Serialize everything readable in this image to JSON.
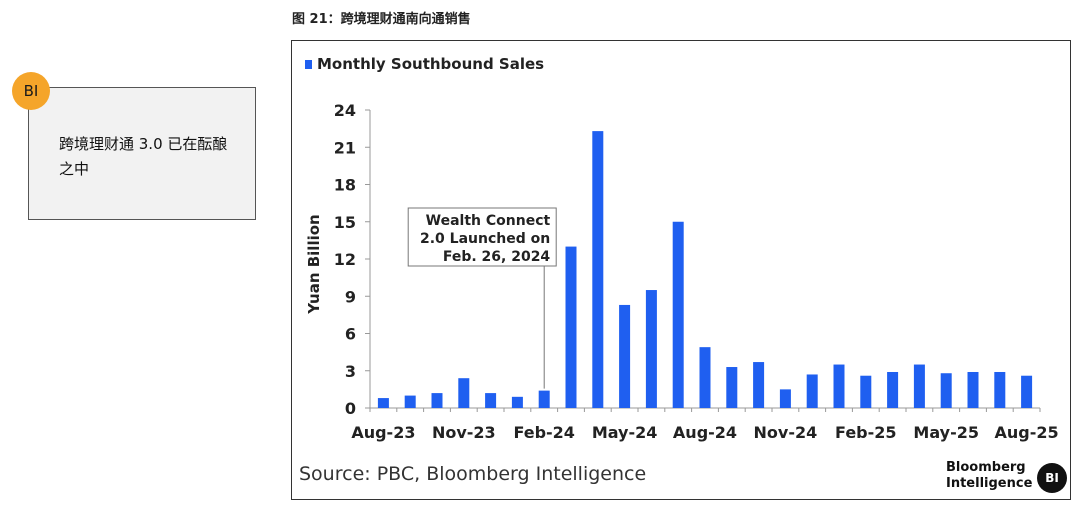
{
  "figure_label": "图 21：跨境理财通南向通销售",
  "callout": {
    "badge": "BI",
    "text": "跨境理财通 3.0 已在酝酿之中"
  },
  "footer": {
    "source": "Source: PBC, Bloomberg Intelligence",
    "brand_line1": "Bloomberg",
    "brand_line2": "Intelligence",
    "brand_badge": "BI"
  },
  "colors": {
    "bar": "#1f5ff0",
    "callout_badge": "#f5a52a"
  },
  "chart_data": {
    "type": "bar",
    "title": "Monthly Southbound Sales",
    "legend": "Monthly Southbound Sales",
    "ylabel": "Yuan Billion",
    "xlabel": "",
    "ylim": [
      0,
      24
    ],
    "yticks": [
      0,
      3,
      6,
      9,
      12,
      15,
      18,
      21,
      24
    ],
    "xtick_labels": [
      "Aug-23",
      "Nov-23",
      "Feb-24",
      "May-24",
      "Aug-24",
      "Nov-24",
      "Feb-25",
      "May-25",
      "Aug-25"
    ],
    "categories": [
      "Aug-23",
      "Sep-23",
      "Oct-23",
      "Nov-23",
      "Dec-23",
      "Jan-24",
      "Feb-24",
      "Mar-24",
      "Apr-24",
      "May-24",
      "Jun-24",
      "Jul-24",
      "Aug-24",
      "Sep-24",
      "Oct-24",
      "Nov-24",
      "Dec-24",
      "Jan-25",
      "Feb-25",
      "Mar-25",
      "Apr-25",
      "May-25",
      "Jun-25",
      "Jul-25",
      "Aug-25"
    ],
    "values": [
      0.8,
      1.0,
      1.2,
      2.4,
      1.2,
      0.9,
      1.4,
      13.0,
      22.3,
      8.3,
      9.5,
      15.0,
      4.9,
      3.3,
      3.7,
      1.5,
      2.7,
      3.5,
      2.6,
      2.9,
      3.5,
      2.8,
      2.9,
      2.9,
      2.6
    ],
    "annotation": {
      "lines": [
        "Wealth Connect",
        "2.0 Launched on",
        "Feb. 26, 2024"
      ],
      "category": "Feb-24"
    }
  }
}
